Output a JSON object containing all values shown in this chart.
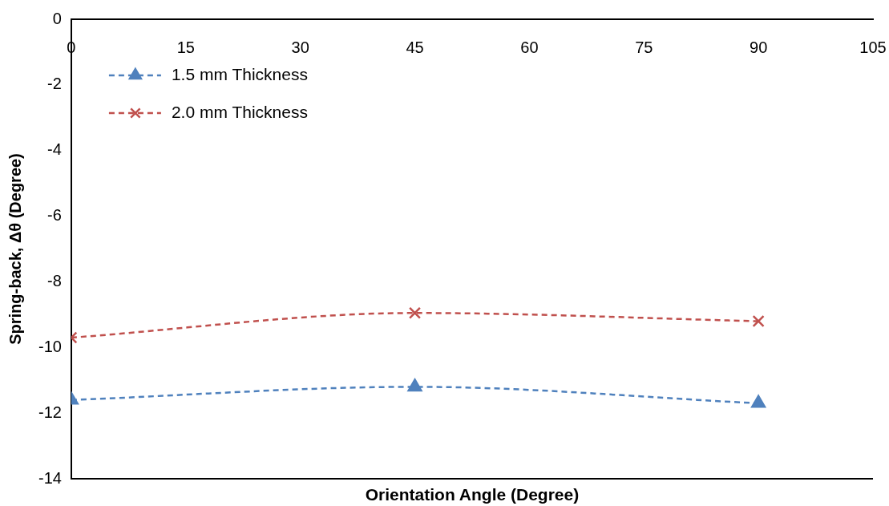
{
  "chart_data": {
    "type": "line",
    "xlabel": "Orientation Angle (Degree)",
    "ylabel": "Spring-back, Δθ (Degree)",
    "x": [
      0,
      45,
      90
    ],
    "series": [
      {
        "name": "1.5 mm Thickness",
        "color": "#4f81bd",
        "marker": "triangle",
        "values": [
          -11.6,
          -11.2,
          -11.7
        ]
      },
      {
        "name": "2.0 mm Thickness",
        "color": "#c0504d",
        "marker": "cross",
        "values": [
          -9.7,
          -8.95,
          -9.2
        ]
      }
    ],
    "xlim": [
      0,
      105
    ],
    "xticks": [
      0,
      15,
      30,
      45,
      60,
      75,
      90,
      105
    ],
    "ylim": [
      -14,
      0
    ],
    "yticks": [
      -14,
      -12,
      -10,
      -8,
      -6,
      -4,
      -2,
      0
    ],
    "grid": false,
    "legend": "top left",
    "line_style": "dashed"
  }
}
